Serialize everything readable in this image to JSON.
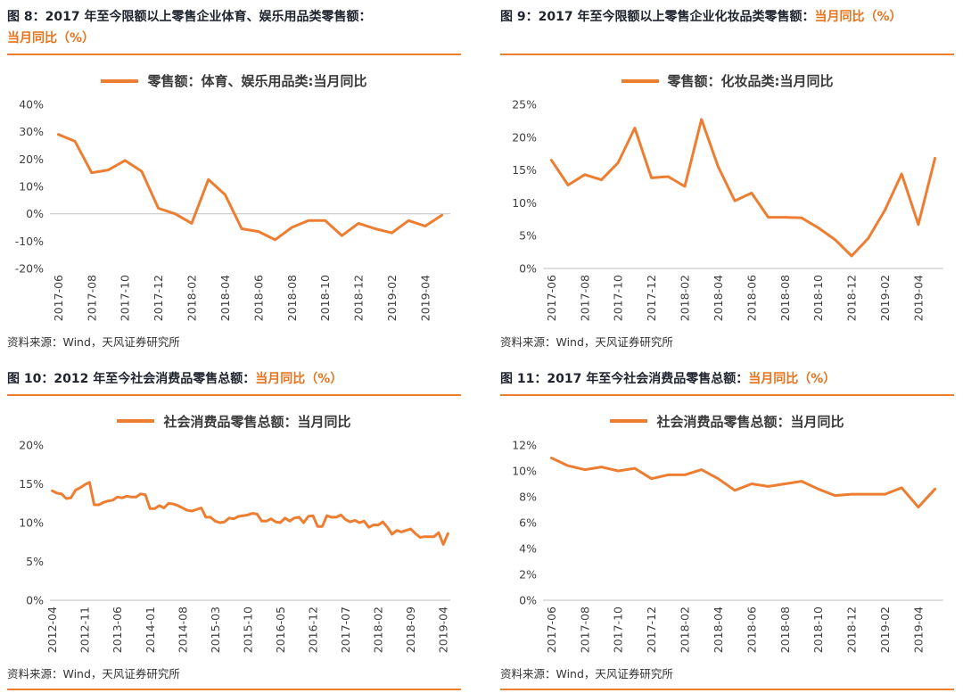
{
  "accent_color": "#ed7d31",
  "chart_data": [
    {
      "type": "line",
      "title": "图 8：2017 年至今限额以上零售企业体育、娱乐用品类零售额：当月同比（%）",
      "title_dark": "图 8：2017 年至今限额以上零售企业体育、娱乐用品类零售额：",
      "title_orange": "当月同比（%）",
      "legend": "零售额：体育、娱乐用品类:当月同比",
      "source": "资料来源：Wind，天风证券研究所",
      "ticks": [
        "2017-06",
        "2017-08",
        "2017-10",
        "2017-12",
        "2018-02",
        "2018-04",
        "2018-06",
        "2018-08",
        "2018-10",
        "2018-12",
        "2019-02",
        "2019-04"
      ],
      "tick_every": 2,
      "values": [
        29,
        26.5,
        15,
        16,
        19.5,
        15.5,
        2,
        0,
        -3.5,
        12.5,
        7,
        -5.5,
        -6.5,
        -9.5,
        -5,
        -2.5,
        -2.5,
        -8,
        -3.5,
        -5.5,
        -7,
        -2.5,
        -4.5,
        -0.5
      ],
      "ylim": [
        -20,
        40
      ],
      "ystep": 10,
      "unit": "%",
      "grid": false,
      "legend_position": "top",
      "color": "#ed7d31",
      "baseline_color": "#bfbfbf"
    },
    {
      "type": "line",
      "title": "图 9：2017 年至今限额以上零售企业化妆品类零售额：当月同比（%）",
      "title_dark": "图 9：2017 年至今限额以上零售企业化妆品类零售额：",
      "title_orange": "当月同比（%）",
      "legend": "零售额：化妆品类:当月同比",
      "source": "资料来源：Wind，天风证券研究所",
      "ticks": [
        "2017-06",
        "2017-08",
        "2017-10",
        "2017-12",
        "2018-02",
        "2018-04",
        "2018-06",
        "2018-08",
        "2018-10",
        "2018-12",
        "2019-02",
        "2019-04"
      ],
      "tick_every": 2,
      "values": [
        16.5,
        12.7,
        14.3,
        13.5,
        16.1,
        21.4,
        13.8,
        14.0,
        12.5,
        22.7,
        15.5,
        10.3,
        11.5,
        7.8,
        7.8,
        7.7,
        6.2,
        4.4,
        1.9,
        4.6,
        8.9,
        14.4,
        6.7,
        16.8
      ],
      "ylim": [
        0,
        25
      ],
      "ystep": 5,
      "unit": "%",
      "grid": false,
      "legend_position": "top",
      "color": "#ed7d31",
      "baseline_color": "#bfbfbf"
    },
    {
      "type": "line",
      "title": "图 10：2012 年至今社会消费品零售总额：当月同比（%）",
      "title_dark": "图 10：2012 年至今社会消费品零售总额：",
      "title_orange": "当月同比（%）",
      "legend": "社会消费品零售总额：当月同比",
      "source": "资料来源：Wind，天风证券研究所",
      "ticks": [
        "2012-04",
        "2012-11",
        "2013-06",
        "2014-01",
        "2014-08",
        "2015-03",
        "2015-10",
        "2016-05",
        "2016-12",
        "2017-07",
        "2018-02",
        "2018-09",
        "2019-04"
      ],
      "tick_every": 7,
      "values": [
        14.1,
        13.8,
        13.7,
        13.1,
        13.2,
        14.2,
        14.5,
        14.9,
        15.2,
        12.3,
        12.3,
        12.6,
        12.8,
        12.9,
        13.3,
        13.2,
        13.4,
        13.3,
        13.3,
        13.7,
        13.6,
        11.8,
        11.8,
        12.2,
        11.9,
        12.5,
        12.4,
        12.2,
        11.9,
        11.6,
        11.5,
        11.7,
        11.9,
        10.7,
        10.7,
        10.2,
        10.0,
        10.1,
        10.6,
        10.5,
        10.8,
        10.9,
        11.0,
        11.2,
        11.1,
        10.2,
        10.2,
        10.5,
        10.1,
        10.0,
        10.6,
        10.2,
        10.6,
        10.7,
        10.0,
        10.8,
        10.9,
        9.5,
        9.5,
        10.9,
        10.7,
        10.7,
        11.0,
        10.4,
        10.1,
        10.3,
        10.0,
        10.2,
        9.4,
        9.7,
        9.7,
        10.1,
        9.4,
        8.5,
        9.0,
        8.8,
        9.0,
        9.2,
        8.6,
        8.1,
        8.2,
        8.2,
        8.2,
        8.7,
        7.2,
        8.6
      ],
      "ylim": [
        0,
        20
      ],
      "ystep": 5,
      "unit": "%",
      "grid": false,
      "legend_position": "top",
      "color": "#ed7d31",
      "baseline_color": "#bfbfbf"
    },
    {
      "type": "line",
      "title": "图 11：2017 年至今社会消费品零售总额：当月同比（%）",
      "title_dark": "图 11：2017 年至今社会消费品零售总额：",
      "title_orange": "当月同比（%）",
      "legend": "社会消费品零售总额：当月同比",
      "source": "资料来源：Wind，天风证券研究所",
      "ticks": [
        "2017-06",
        "2017-08",
        "2017-10",
        "2017-12",
        "2018-02",
        "2018-04",
        "2018-06",
        "2018-08",
        "2018-10",
        "2018-12",
        "2019-02",
        "2019-04"
      ],
      "tick_every": 2,
      "values": [
        11.0,
        10.4,
        10.1,
        10.3,
        10.0,
        10.2,
        9.4,
        9.7,
        9.7,
        10.1,
        9.4,
        8.5,
        9.0,
        8.8,
        9.0,
        9.2,
        8.6,
        8.1,
        8.2,
        8.2,
        8.2,
        8.7,
        7.2,
        8.6
      ],
      "ylim": [
        0,
        12
      ],
      "ystep": 2,
      "unit": "%",
      "grid": false,
      "legend_position": "top",
      "color": "#ed7d31",
      "baseline_color": "#bfbfbf"
    }
  ]
}
